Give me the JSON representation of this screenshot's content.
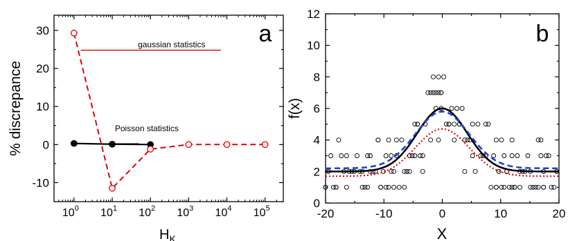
{
  "chart_data": [
    {
      "type": "line",
      "panel_letter": "a",
      "xlabel": "H",
      "xlabel_sub": "K",
      "ylabel": "% discrepance",
      "x_scale": "log",
      "xlim": [
        0.3,
        300000
      ],
      "ylim": [
        -15,
        34
      ],
      "x_tick_values": [
        1,
        10,
        100,
        1000,
        10000,
        100000
      ],
      "x_tick_labels": [
        {
          "base": "10",
          "exp": "0"
        },
        {
          "base": "10",
          "exp": "1"
        },
        {
          "base": "10",
          "exp": "2"
        },
        {
          "base": "10",
          "exp": "3"
        },
        {
          "base": "10",
          "exp": "4"
        },
        {
          "base": "10",
          "exp": "5"
        }
      ],
      "y_ticks": [
        -10,
        0,
        10,
        20,
        30
      ],
      "y_tick_labels": [
        "-10",
        "0",
        "10",
        "20",
        "30"
      ],
      "series": [
        {
          "name": "Poisson statistics",
          "color": "#000000",
          "line_style": "solid",
          "marker": "filled-circle",
          "x": [
            1,
            10,
            100
          ],
          "y": [
            0.3,
            0.1,
            0.0
          ]
        },
        {
          "name": "gaussian statistics",
          "color": "#e00000",
          "line_style": "dashed",
          "marker": "open-circle",
          "x": [
            1,
            10,
            100,
            1000,
            10000,
            100000
          ],
          "y": [
            29.3,
            -11.5,
            -1.2,
            0.0,
            0.0,
            0.0
          ]
        }
      ],
      "annotations": [
        {
          "text": "gaussian statistics",
          "color": "#e00000",
          "x_from": 1.5,
          "x_to": 7000,
          "y": 24.8
        },
        {
          "text": "Poisson statistics",
          "color": "#000000",
          "x_from": 1,
          "x_to": 50,
          "y": 0.2
        }
      ]
    },
    {
      "type": "scatter",
      "panel_letter": "b",
      "xlabel": "X",
      "ylabel": "f(x)",
      "xlim": [
        -20,
        20
      ],
      "ylim": [
        0,
        12
      ],
      "x_ticks": [
        -20,
        -10,
        0,
        10,
        20
      ],
      "x_tick_labels": [
        "-20",
        "-10",
        "0",
        "10",
        "20"
      ],
      "y_ticks": [
        0,
        2,
        4,
        6,
        8,
        10,
        12
      ],
      "y_tick_labels": [
        "0",
        "2",
        "4",
        "6",
        "8",
        "10",
        "12"
      ],
      "scatter_marker": "open-circle",
      "scatter_note": "integer-valued counts scattered around a gaussian bump",
      "curves": [
        {
          "color": "#000000",
          "line_style": "solid",
          "baseline": 2.0,
          "amplitude": 4.0,
          "center": 0,
          "sigma": 4.3
        },
        {
          "color": "#1f3fe0",
          "line_style": "dashed",
          "baseline": 2.2,
          "amplitude": 3.6,
          "center": 0,
          "sigma": 4.6
        },
        {
          "color": "#e00000",
          "line_style": "dotted",
          "baseline": 1.7,
          "amplitude": 3.0,
          "center": 0,
          "sigma": 4.6
        }
      ]
    }
  ]
}
